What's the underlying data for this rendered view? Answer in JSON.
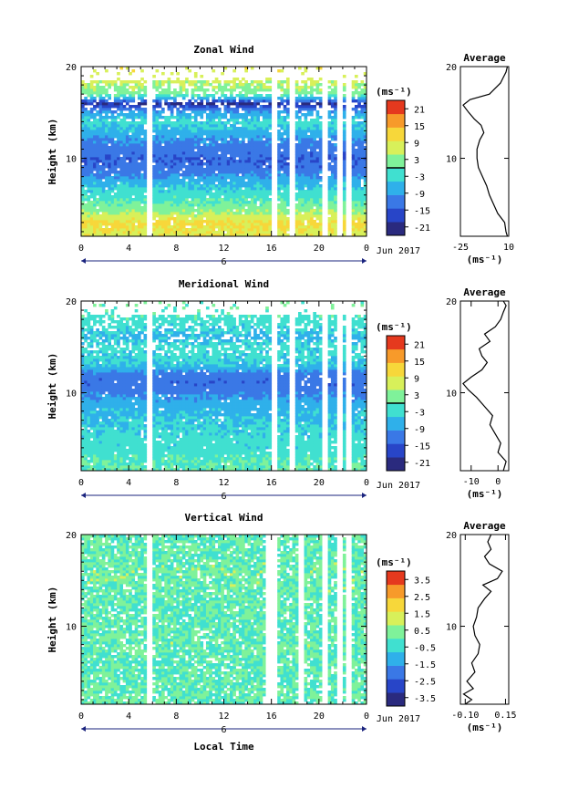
{
  "figure": {
    "shared_xlabel": "Local Time",
    "date_label": "Jun 2017",
    "day_label": "6",
    "unit_label": "(ms⁻¹)",
    "average_title": "Average",
    "height_label": "Height (km)"
  },
  "chart_data": [
    {
      "type": "heatmap",
      "title": "Zonal Wind",
      "xlabel": "",
      "ylabel": "Height (km)",
      "x_ticks": [
        "0",
        "4",
        "8",
        "12",
        "16",
        "20",
        "0"
      ],
      "xlim": [
        0,
        24
      ],
      "y_ticks": [
        "10",
        "20"
      ],
      "ylim": [
        1.5,
        20
      ],
      "colorbar_ticks": [
        "21",
        "15",
        "9",
        "3",
        "-3",
        "-9",
        "-15",
        "-21"
      ],
      "colorbar_range": [
        -24,
        24
      ],
      "contour_level": 0,
      "profile_by_height": [
        {
          "h": 2,
          "v": 9
        },
        {
          "h": 3,
          "v": 11
        },
        {
          "h": 4,
          "v": 5
        },
        {
          "h": 5,
          "v": 1
        },
        {
          "h": 6,
          "v": -2
        },
        {
          "h": 7,
          "v": -5
        },
        {
          "h": 8,
          "v": -9
        },
        {
          "h": 9,
          "v": -13
        },
        {
          "h": 10,
          "v": -14
        },
        {
          "h": 11,
          "v": -12
        },
        {
          "h": 12,
          "v": -10
        },
        {
          "h": 13,
          "v": -6
        },
        {
          "h": 14,
          "v": -3
        },
        {
          "h": 15,
          "v": -8
        },
        {
          "h": 16,
          "v": -20
        },
        {
          "h": 17,
          "v": 2
        },
        {
          "h": 18,
          "v": 5
        },
        {
          "h": 19,
          "v": 8
        }
      ],
      "missing_columns_hours": [
        5.7,
        16.3,
        17.8,
        20.5,
        21.8,
        22.5
      ],
      "missing_above_km": 18.5,
      "average": {
        "title": "Average",
        "xlabel": "(ms⁻¹)",
        "x_ticks": [
          "-25",
          "10"
        ],
        "xlim": [
          -25,
          10
        ],
        "y_ticks": [
          "10",
          "20"
        ],
        "ylim": [
          1.5,
          20
        ],
        "profile": [
          {
            "h": 1.5,
            "v": 9
          },
          {
            "h": 2,
            "v": 8
          },
          {
            "h": 3,
            "v": 7
          },
          {
            "h": 4,
            "v": 2
          },
          {
            "h": 5,
            "v": -1
          },
          {
            "h": 6,
            "v": -4
          },
          {
            "h": 7,
            "v": -6
          },
          {
            "h": 8,
            "v": -9
          },
          {
            "h": 9,
            "v": -12
          },
          {
            "h": 10,
            "v": -13
          },
          {
            "h": 11,
            "v": -13
          },
          {
            "h": 12,
            "v": -11
          },
          {
            "h": 12.8,
            "v": -8
          },
          {
            "h": 13.6,
            "v": -10
          },
          {
            "h": 14.3,
            "v": -15
          },
          {
            "h": 15,
            "v": -19
          },
          {
            "h": 15.8,
            "v": -23
          },
          {
            "h": 16.4,
            "v": -18
          },
          {
            "h": 17,
            "v": -4
          },
          {
            "h": 17.6,
            "v": 0
          },
          {
            "h": 18.2,
            "v": 4
          },
          {
            "h": 18.8,
            "v": 6
          },
          {
            "h": 19.4,
            "v": 8
          },
          {
            "h": 20,
            "v": 9
          }
        ]
      }
    },
    {
      "type": "heatmap",
      "title": "Meridional Wind",
      "xlabel": "",
      "ylabel": "Height (km)",
      "x_ticks": [
        "0",
        "4",
        "8",
        "12",
        "16",
        "20",
        "0"
      ],
      "xlim": [
        0,
        24
      ],
      "y_ticks": [
        "10",
        "20"
      ],
      "ylim": [
        1.5,
        20
      ],
      "colorbar_ticks": [
        "21",
        "15",
        "9",
        "3",
        "-3",
        "-9",
        "-15",
        "-21"
      ],
      "colorbar_range": [
        -24,
        24
      ],
      "contour_level": 0,
      "profile_by_height": [
        {
          "h": 2,
          "v": 0
        },
        {
          "h": 3,
          "v": -1
        },
        {
          "h": 4,
          "v": -3
        },
        {
          "h": 5,
          "v": -3
        },
        {
          "h": 6,
          "v": -4
        },
        {
          "h": 7,
          "v": -5
        },
        {
          "h": 8,
          "v": -6
        },
        {
          "h": 9,
          "v": -8
        },
        {
          "h": 10,
          "v": -11
        },
        {
          "h": 11,
          "v": -13
        },
        {
          "h": 12,
          "v": -12
        },
        {
          "h": 13,
          "v": -5
        },
        {
          "h": 14,
          "v": -4
        },
        {
          "h": 15,
          "v": -3
        },
        {
          "h": 16,
          "v": -6
        },
        {
          "h": 17,
          "v": -4
        },
        {
          "h": 18,
          "v": -2
        },
        {
          "h": 19,
          "v": 0
        }
      ],
      "missing_columns_hours": [
        5.7,
        16.3,
        17.8,
        20.5,
        21.8,
        22.5
      ],
      "missing_above_km": 18.5,
      "average": {
        "title": "Average",
        "xlabel": "(ms⁻¹)",
        "x_ticks": [
          "-10",
          "0"
        ],
        "xlim": [
          -14,
          4
        ],
        "y_ticks": [
          "10",
          "20"
        ],
        "ylim": [
          1.5,
          20
        ],
        "profile": [
          {
            "h": 1.5,
            "v": 2
          },
          {
            "h": 2.5,
            "v": 3
          },
          {
            "h": 3.5,
            "v": 0
          },
          {
            "h": 4.5,
            "v": 1
          },
          {
            "h": 5.5,
            "v": -1
          },
          {
            "h": 6.5,
            "v": -3
          },
          {
            "h": 7.5,
            "v": -2
          },
          {
            "h": 8.5,
            "v": -5
          },
          {
            "h": 9.5,
            "v": -8
          },
          {
            "h": 10.3,
            "v": -11
          },
          {
            "h": 11,
            "v": -13
          },
          {
            "h": 11.7,
            "v": -10
          },
          {
            "h": 12.5,
            "v": -6
          },
          {
            "h": 13.3,
            "v": -4
          },
          {
            "h": 14,
            "v": -6
          },
          {
            "h": 14.8,
            "v": -7
          },
          {
            "h": 15.6,
            "v": -3
          },
          {
            "h": 16.4,
            "v": -5
          },
          {
            "h": 17.2,
            "v": -1
          },
          {
            "h": 18,
            "v": 1
          },
          {
            "h": 18.8,
            "v": 2
          },
          {
            "h": 19.5,
            "v": 3
          },
          {
            "h": 20,
            "v": 2
          }
        ]
      }
    },
    {
      "type": "heatmap",
      "title": "Vertical Wind",
      "xlabel": "Local Time",
      "ylabel": "Height (km)",
      "x_ticks": [
        "0",
        "4",
        "8",
        "12",
        "16",
        "20",
        "0"
      ],
      "xlim": [
        0,
        24
      ],
      "y_ticks": [
        "10",
        "20"
      ],
      "ylim": [
        1.5,
        20
      ],
      "colorbar_ticks": [
        "3.5",
        "2.5",
        "1.5",
        "0.5",
        "-0.5",
        "-1.5",
        "-2.5",
        "-3.5"
      ],
      "colorbar_range": [
        -4,
        4
      ],
      "contour_level": null,
      "profile_by_height": [
        {
          "h": 2,
          "v": 0.1
        },
        {
          "h": 4,
          "v": 0.0
        },
        {
          "h": 6,
          "v": 0.0
        },
        {
          "h": 8,
          "v": 0.1
        },
        {
          "h": 10,
          "v": 0.0
        },
        {
          "h": 12,
          "v": 0.0
        },
        {
          "h": 14,
          "v": 0.1
        },
        {
          "h": 16,
          "v": 0.2
        },
        {
          "h": 18,
          "v": 0.0
        },
        {
          "h": 19,
          "v": 0.0
        }
      ],
      "missing_columns_hours": [
        5.7,
        15.8,
        16.2,
        18.5,
        20.5,
        21.8,
        22.5
      ],
      "missing_above_km": 20,
      "average": {
        "title": "Average",
        "xlabel": "(ms⁻¹)",
        "x_ticks": [
          "-0.10",
          "0.15"
        ],
        "xlim": [
          -0.13,
          0.17
        ],
        "y_ticks": [
          "10",
          "20"
        ],
        "ylim": [
          1.5,
          20
        ],
        "profile": [
          {
            "h": 1.5,
            "v": -0.1
          },
          {
            "h": 2,
            "v": -0.06
          },
          {
            "h": 2.6,
            "v": -0.11
          },
          {
            "h": 3.2,
            "v": -0.05
          },
          {
            "h": 4,
            "v": -0.09
          },
          {
            "h": 5,
            "v": -0.04
          },
          {
            "h": 6,
            "v": -0.06
          },
          {
            "h": 7,
            "v": -0.02
          },
          {
            "h": 8,
            "v": -0.01
          },
          {
            "h": 9,
            "v": -0.04
          },
          {
            "h": 10,
            "v": -0.05
          },
          {
            "h": 11,
            "v": -0.03
          },
          {
            "h": 12,
            "v": -0.02
          },
          {
            "h": 13,
            "v": 0.02
          },
          {
            "h": 13.8,
            "v": 0.06
          },
          {
            "h": 14.5,
            "v": 0.01
          },
          {
            "h": 15.2,
            "v": 0.1
          },
          {
            "h": 16,
            "v": 0.13
          },
          {
            "h": 16.8,
            "v": 0.05
          },
          {
            "h": 17.6,
            "v": 0.02
          },
          {
            "h": 18.4,
            "v": 0.06
          },
          {
            "h": 19.2,
            "v": 0.04
          },
          {
            "h": 20,
            "v": 0.06
          }
        ]
      }
    }
  ]
}
